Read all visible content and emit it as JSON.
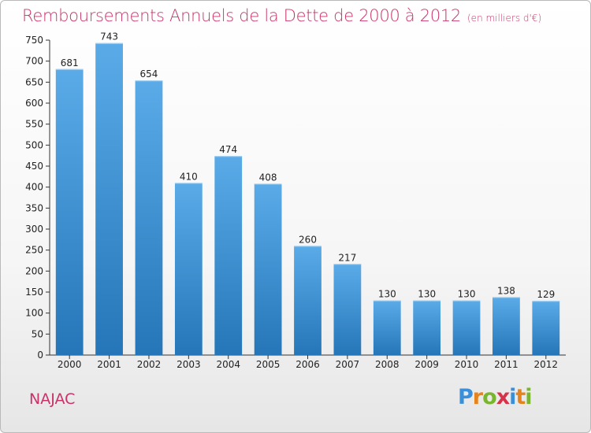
{
  "title": "Remboursements Annuels de la Dette de 2000 à 2012",
  "unit_note": "(en milliers d'€)",
  "town": "NAJAC",
  "logo": {
    "text": "Proxiti",
    "letters": [
      "P",
      "r",
      "o",
      "x",
      "i",
      "t",
      "i"
    ],
    "colors": [
      "#3a8fd8",
      "#e5841c",
      "#79b52e",
      "#d6324a",
      "#3a8fd8",
      "#e5841c",
      "#79b52e"
    ]
  },
  "colors": {
    "bar_light": "#5aabe8",
    "bar_dark": "#2576b8",
    "title": "#c8336a"
  },
  "chart_data": {
    "type": "bar",
    "title": "Remboursements Annuels de la Dette de 2000 à 2012",
    "subtitle": "(en milliers d'€)",
    "categories": [
      "2000",
      "2001",
      "2002",
      "2003",
      "2004",
      "2005",
      "2006",
      "2007",
      "2008",
      "2009",
      "2010",
      "2011",
      "2012"
    ],
    "values": [
      681,
      743,
      654,
      410,
      474,
      408,
      260,
      217,
      130,
      130,
      130,
      138,
      129
    ],
    "ylim": [
      0,
      750
    ],
    "yticks": [
      0,
      50,
      100,
      150,
      200,
      250,
      300,
      350,
      400,
      450,
      500,
      550,
      600,
      650,
      700,
      750
    ],
    "grid": false,
    "legend": "none"
  }
}
